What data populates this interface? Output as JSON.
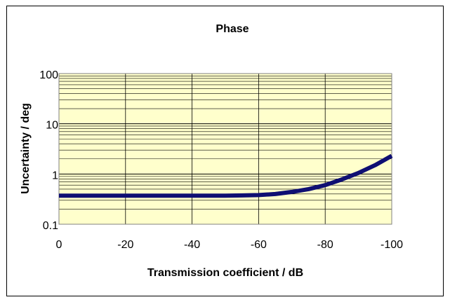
{
  "chart_data": {
    "type": "line",
    "title": "Phase",
    "xlabel": "Transmission coefficient / dB",
    "ylabel": "Uncertainty / deg",
    "x_ticks": [
      "0",
      "-20",
      "-40",
      "-60",
      "-80",
      "-100"
    ],
    "x_tick_values": [
      0,
      -20,
      -40,
      -60,
      -80,
      -100
    ],
    "y_ticks": [
      "0.1",
      "1",
      "10",
      "100"
    ],
    "y_tick_values": [
      0.1,
      1,
      10,
      100
    ],
    "xlim": [
      0,
      -100
    ],
    "ylim": [
      0.1,
      100
    ],
    "y_scale": "log",
    "grid": true,
    "legend": "none",
    "plot_background": "#ffffcc",
    "series": [
      {
        "color": "#0f0f73",
        "x": [
          0,
          -10,
          -20,
          -30,
          -40,
          -50,
          -55,
          -60,
          -65,
          -70,
          -75,
          -80,
          -85,
          -90,
          -95,
          -100
        ],
        "y": [
          0.37,
          0.37,
          0.37,
          0.37,
          0.37,
          0.37,
          0.375,
          0.38,
          0.4,
          0.44,
          0.5,
          0.6,
          0.78,
          1.05,
          1.5,
          2.3
        ]
      }
    ]
  }
}
